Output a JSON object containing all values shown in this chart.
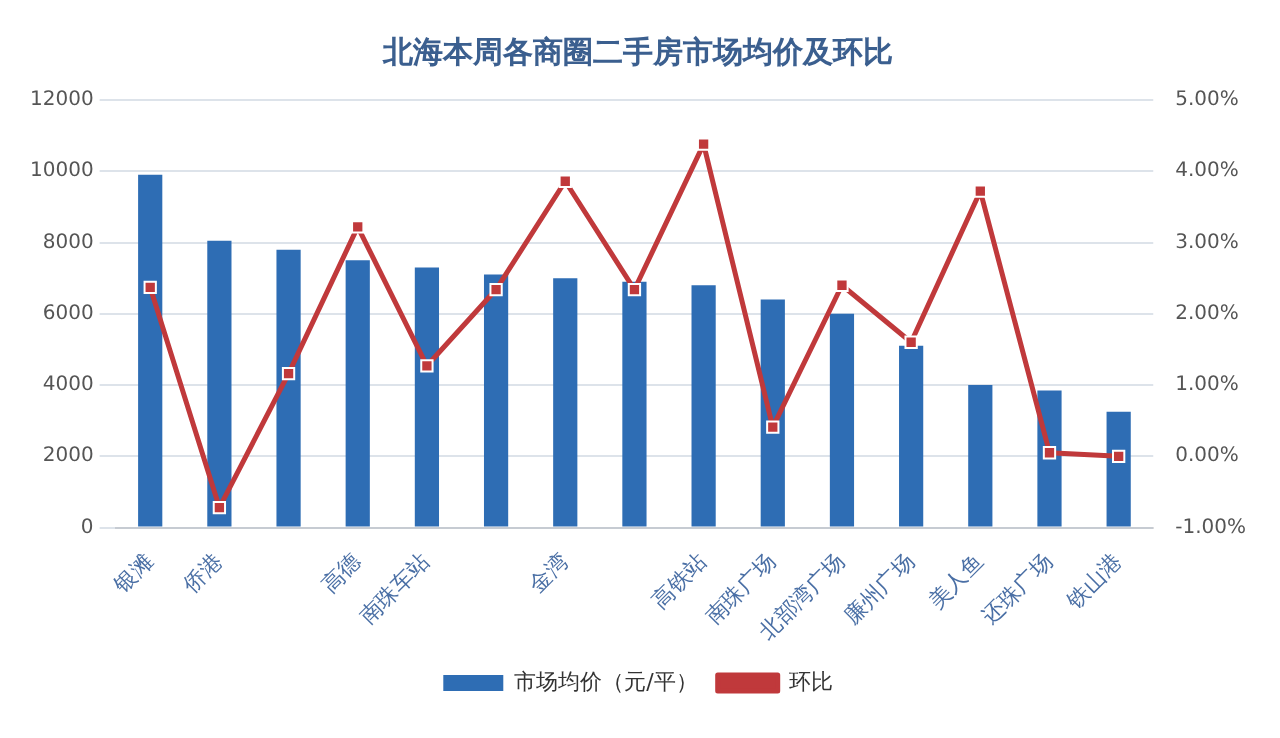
{
  "chart_data": {
    "type": "bar",
    "title": "北海本周各商圈二手房市场均价及环比",
    "categories": [
      "银滩",
      "侨港",
      null,
      "高德",
      "南珠车站",
      null,
      "金湾",
      null,
      "高铁站",
      "南珠广场",
      "北部湾广场",
      "廉州广场",
      "美人鱼",
      "还珠广场",
      "铁山港"
    ],
    "series": [
      {
        "name": "市场均价（元/平）",
        "color": "#2e6db4",
        "values": [
          9900,
          8050,
          7800,
          7500,
          7300,
          7100,
          7000,
          6900,
          6800,
          6400,
          6000,
          5100,
          4000,
          3850,
          3250
        ]
      },
      {
        "name": "环比",
        "type": "line",
        "axis": "y2",
        "color": "#c0393b",
        "marker": "square",
        "values": [
          2.37,
          -0.72,
          1.16,
          3.22,
          1.27,
          2.34,
          3.86,
          2.34,
          4.38,
          0.41,
          2.4,
          1.6,
          3.72,
          0.05,
          0.0
        ]
      }
    ],
    "ylim": [
      0,
      12000
    ],
    "yticks": [
      0,
      2000,
      4000,
      6000,
      8000,
      10000,
      12000
    ],
    "y2lim": [
      -1,
      5
    ],
    "y2ticks": [
      {
        "value": -1,
        "label": "-1.00%"
      },
      {
        "value": 0,
        "label": "0.00%"
      },
      {
        "value": 1,
        "label": "1.00%"
      },
      {
        "value": 2,
        "label": "2.00%"
      },
      {
        "value": 3,
        "label": "3.00%"
      },
      {
        "value": 4,
        "label": "4.00%"
      },
      {
        "value": 5,
        "label": "5.00%"
      }
    ],
    "grid": "y",
    "legend": "bottom"
  }
}
